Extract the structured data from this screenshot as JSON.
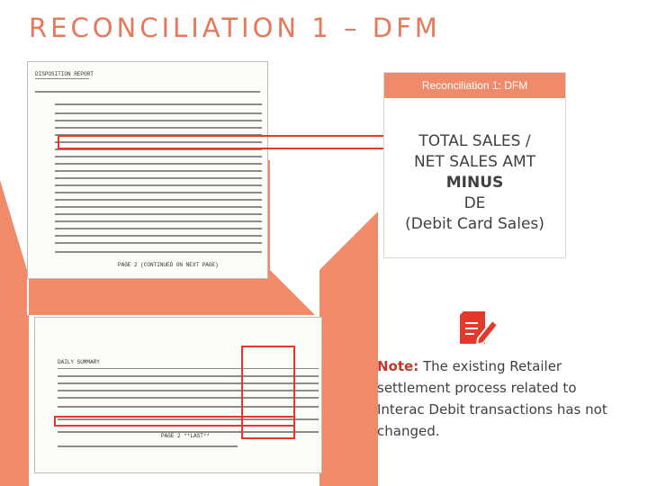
{
  "slide": {
    "title": "RECONCILIATION 1 – DFM"
  },
  "colors": {
    "accent": "#f08a68",
    "highlight": "#e03a2c",
    "note_label": "#c0392b"
  },
  "panel": {
    "header": "Reconciliation 1: DFM",
    "lines": [
      "TOTAL SALES /",
      "NET SALES AMT",
      "MINUS",
      "DE",
      "(Debit Card Sales)"
    ]
  },
  "note": {
    "label": "Note:",
    "text": " The existing Retailer settlement process related to Interac Debit transactions has not changed.",
    "icon": "document-pencil-icon"
  },
  "report_top": {
    "header": "DISPOSITION REPORT",
    "footer": "PAGE 2 (CONTINUED ON NEXT PAGE)"
  },
  "report_bottom": {
    "header": "DAILY SUMMARY",
    "footer": "PAGE 2 **LAST**"
  }
}
